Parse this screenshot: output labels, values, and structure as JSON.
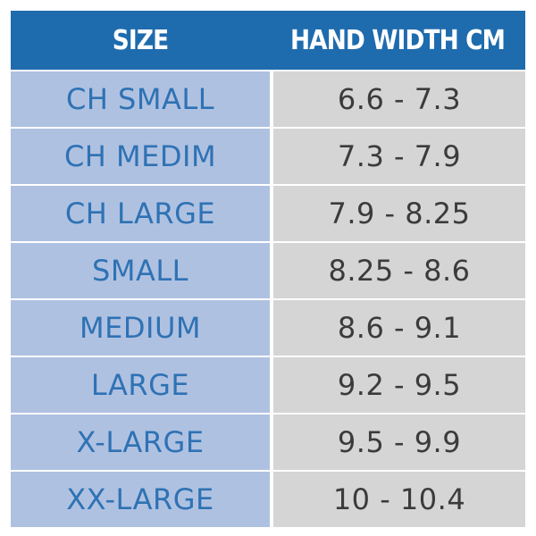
{
  "header": {
    "columns": [
      "SIZE",
      "HAND WIDTH CM"
    ]
  },
  "table": {
    "rows": [
      [
        "CH SMALL",
        "6.6 - 7.3"
      ],
      [
        "CH MEDIM",
        "7.3 - 7.9"
      ],
      [
        "CH LARGE",
        "7.9 - 8.25"
      ],
      [
        "SMALL",
        "8.25 - 8.6"
      ],
      [
        "MEDIUM",
        "8.6 - 9.1"
      ],
      [
        "LARGE",
        "9.2 - 9.5"
      ],
      [
        "X-LARGE",
        "9.5 - 9.9"
      ],
      [
        "XX-LARGE",
        "10 - 10.4"
      ]
    ]
  }
}
